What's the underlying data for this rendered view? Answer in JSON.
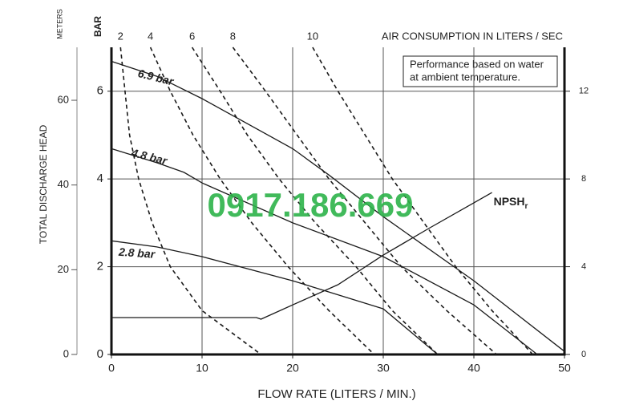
{
  "chart_data": {
    "type": "line",
    "xlabel": "FLOW RATE (LITERS / MIN.)",
    "ylabel": "TOTAL DISCHARGE HEAD",
    "y_unit": "BAR",
    "top_axis_label": "AIR CONSUMPTION IN LITERS / SEC",
    "note": [
      "Performance based on water",
      "at ambient temperature."
    ],
    "watermark": {
      "text": "0917.186.669",
      "color": "#2db34a"
    },
    "xlim": [
      0,
      50
    ],
    "xticks": [
      0,
      10,
      20,
      30,
      40,
      50
    ],
    "ylim": [
      0,
      7
    ],
    "yticks": [
      0,
      2,
      4,
      6
    ],
    "y2lim": [
      0,
      14
    ],
    "y2ticks": [
      0,
      4,
      8,
      12
    ],
    "meters_axis": {
      "label": "METERS",
      "lim": [
        0,
        72.5
      ],
      "ticks": [
        0,
        20,
        40,
        60
      ]
    },
    "grid": true,
    "series": [
      {
        "name": "6.9 bar",
        "color": "#1a1a1a",
        "dashed": false,
        "x": [
          0,
          5,
          10,
          20,
          24,
          30,
          40,
          50
        ],
        "values": [
          6.68,
          6.34,
          5.83,
          4.69,
          4.09,
          3.14,
          1.68,
          0.07
        ]
      },
      {
        "name": "4.8 bar",
        "color": "#1a1a1a",
        "dashed": false,
        "x": [
          0,
          5,
          8,
          10,
          20,
          30,
          40,
          47
        ],
        "values": [
          4.69,
          4.37,
          4.15,
          3.91,
          3.0,
          2.23,
          1.13,
          0
        ]
      },
      {
        "name": "2.8 bar",
        "color": "#1a1a1a",
        "dashed": false,
        "x": [
          0,
          5,
          10,
          20,
          30,
          36
        ],
        "values": [
          2.59,
          2.45,
          2.23,
          1.68,
          1.04,
          0
        ]
      },
      {
        "name": "NPSH",
        "subscript": "r",
        "axis": "y2",
        "color": "#1a1a1a",
        "dashed": false,
        "x": [
          0,
          16,
          16.5,
          20,
          25,
          30,
          35,
          42
        ],
        "values": [
          1.68,
          1.68,
          1.61,
          2.26,
          3.18,
          4.53,
          5.74,
          7.38
        ]
      },
      {
        "name": "2",
        "color": "#1a1a1a",
        "dashed": true,
        "x": [
          1,
          1.5,
          2,
          3,
          4.5,
          6.5,
          10,
          16.5
        ],
        "values": [
          7,
          6,
          5,
          4,
          3,
          2,
          1,
          0
        ]
      },
      {
        "name": "4",
        "color": "#1a1a1a",
        "dashed": true,
        "x": [
          4.3,
          6.5,
          9,
          12,
          15.5,
          19.5,
          24,
          29
        ],
        "values": [
          7,
          6,
          5,
          4,
          3,
          2,
          1,
          0
        ]
      },
      {
        "name": "6",
        "color": "#1a1a1a",
        "dashed": true,
        "x": [
          8.9,
          12,
          15,
          18.5,
          22.5,
          27,
          31,
          36
        ],
        "values": [
          7,
          6,
          5,
          4,
          3,
          2,
          1,
          0
        ]
      },
      {
        "name": "8",
        "color": "#1a1a1a",
        "dashed": true,
        "x": [
          13.4,
          17,
          20.5,
          24,
          28,
          32,
          37,
          42.5
        ],
        "values": [
          7,
          6,
          5,
          4,
          3,
          2,
          1,
          0
        ]
      },
      {
        "name": "10",
        "color": "#1a1a1a",
        "dashed": true,
        "x": [
          22.2,
          25,
          28,
          31,
          34.5,
          38,
          42,
          46.5
        ],
        "values": [
          7,
          6,
          5,
          4,
          3,
          2,
          1,
          0
        ]
      }
    ]
  }
}
